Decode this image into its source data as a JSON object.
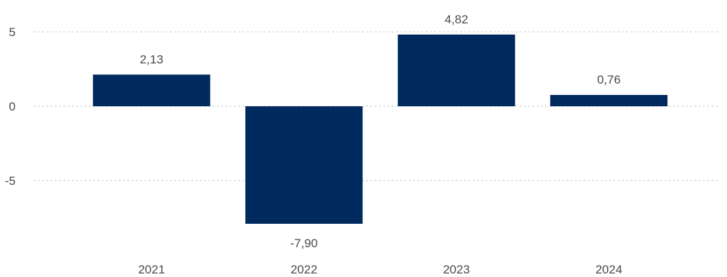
{
  "chart_data": {
    "type": "bar",
    "categories": [
      "2021",
      "2022",
      "2023",
      "2024"
    ],
    "values": [
      2.13,
      -7.9,
      4.82,
      0.76
    ],
    "value_labels": [
      "2,13",
      "-7,90",
      "4,82",
      "0,76"
    ],
    "yticks": [
      5,
      0,
      -5
    ],
    "ytick_labels": [
      "5",
      "0",
      "-5"
    ],
    "ylim": [
      -9.3,
      5.6
    ],
    "grid": true,
    "legend": "none",
    "title": "",
    "xlabel": "",
    "ylabel": ""
  },
  "colors": {
    "bar": "#002A5E",
    "text": "#4A4A4A",
    "grid": "#BFBFBF"
  }
}
